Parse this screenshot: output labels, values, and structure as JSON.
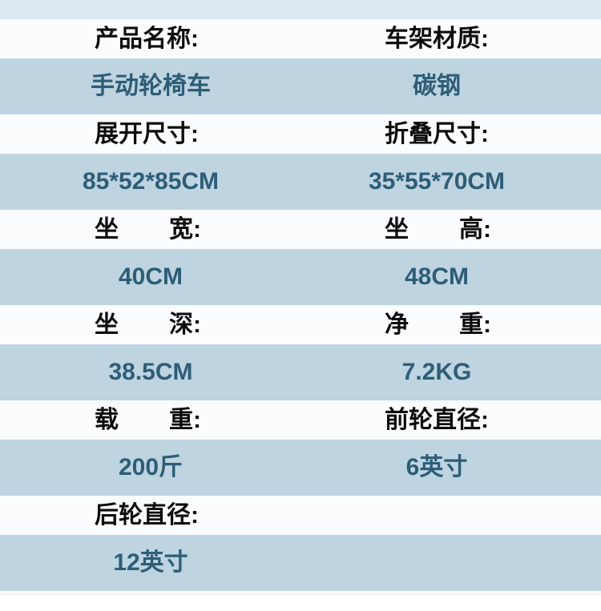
{
  "colors": {
    "page_bg": "#ffffff",
    "top_band": "#dde9f2",
    "label_band_bg": "#fbfcfe",
    "value_row_bg": "#bed4e1",
    "label_text": "#0d0d0d",
    "value_text": "#2e5d76"
  },
  "rows": [
    {
      "left": {
        "label": "产品名称:",
        "value": "手动轮椅车"
      },
      "right": {
        "label": "车架材质:",
        "value": "碳钢"
      }
    },
    {
      "left": {
        "label": "展开尺寸:",
        "value": "85*52*85CM"
      },
      "right": {
        "label": "折叠尺寸:",
        "value": "35*55*70CM"
      }
    },
    {
      "left": {
        "label_a": "坐",
        "label_b": "宽:",
        "value": "40CM"
      },
      "right": {
        "label_a": "坐",
        "label_b": "高:",
        "value": "48CM"
      }
    },
    {
      "left": {
        "label_a": "坐",
        "label_b": "深:",
        "value": "38.5CM"
      },
      "right": {
        "label_a": "净",
        "label_b": "重:",
        "value": "7.2KG"
      }
    },
    {
      "left": {
        "label_a": "载",
        "label_b": "重:",
        "value": "200斤"
      },
      "right": {
        "label": "前轮直径:",
        "value": "6英寸"
      }
    },
    {
      "left": {
        "label": "后轮直径:",
        "value": "12英寸"
      },
      "right": {
        "label": "",
        "value": ""
      }
    }
  ]
}
